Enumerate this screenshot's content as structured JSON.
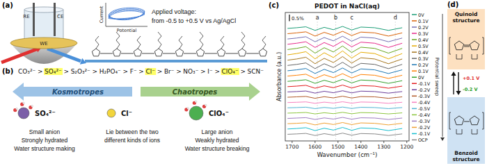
{
  "panels": {
    "a": {
      "letter": "(a)",
      "electrodes": [
        "RE",
        "CE",
        "WE"
      ],
      "inset": {
        "y_label": "Current",
        "x_label": "Potential"
      },
      "voltage_lines": [
        "Applied voltage:",
        "from -0.5 to +0.5 V vs Ag/AgCl"
      ]
    },
    "b": {
      "letter": "(b)",
      "separator": ">",
      "series": [
        {
          "text": "CO₃²⁻",
          "highlight": false
        },
        {
          "text": "SO₄²⁻",
          "highlight": true
        },
        {
          "text": "S₂O₃²⁻",
          "highlight": false
        },
        {
          "text": "H₂PO₄⁻",
          "highlight": false
        },
        {
          "text": "F⁻",
          "highlight": false
        },
        {
          "text": "Cl⁻",
          "highlight": true
        },
        {
          "text": "Br⁻",
          "highlight": false
        },
        {
          "text": "NO₃⁻",
          "highlight": false
        },
        {
          "text": "I⁻",
          "highlight": false
        },
        {
          "text": "ClO₄⁻",
          "highlight": true
        },
        {
          "text": "SCN⁻",
          "highlight": false
        }
      ],
      "arrows": [
        {
          "label": "Kosmotropes",
          "direction": "left",
          "color": "#9dc3e6"
        },
        {
          "label": "Chaotropes",
          "direction": "right",
          "color": "#a9d18e"
        }
      ],
      "ions": [
        {
          "name": "SO₄²⁻",
          "color": "#7b5ea7",
          "lines": [
            "Small anion",
            "Strongly hydrated",
            "Water structure making"
          ]
        },
        {
          "name": "Cl⁻",
          "color": "#f2d53c",
          "lines": [
            "Lie between the two",
            "different kinds of ions"
          ]
        },
        {
          "name": "ClO₄⁻",
          "color": "#4caf50",
          "lines": [
            "Large anion",
            "Weakly hydrated",
            "Water structure breaking"
          ]
        }
      ]
    },
    "c": {
      "letter": "(c)",
      "scale_bar": {
        "value": 0.5,
        "label": "0.5%"
      },
      "sweep_label": "Potential sweep"
    },
    "d": {
      "letter": "(d)",
      "states": [
        {
          "label": "Quinoid structure",
          "color": "#fde0c0"
        },
        {
          "label": "Benzoid structure",
          "color": "#cfe2f3"
        }
      ],
      "transitions": [
        {
          "label": "+0.1 V",
          "color": "#e03030"
        },
        {
          "label": "-0.2 V",
          "color": "#2ca02c"
        }
      ]
    }
  },
  "chart_data": {
    "type": "line",
    "title": "PEDOT in NaCl(aq)",
    "x_label": "Wavenumber (cm⁻¹)",
    "y_label": "Absorbance (a.u.)",
    "x": [
      1720,
      1680,
      1640,
      1600,
      1560,
      1520,
      1480,
      1440,
      1400,
      1340,
      1280,
      1220
    ],
    "xlim": [
      1730,
      1190
    ],
    "xticks": [
      1700,
      1600,
      1500,
      1400,
      1300,
      1200
    ],
    "ylim": [
      -0.5,
      9.2
    ],
    "tick_labels": "x",
    "grid": false,
    "legend": "right",
    "annotations": [
      {
        "text": "a",
        "x": 1590
      },
      {
        "text": "b",
        "x": 1510
      },
      {
        "text": "c",
        "x": 1440
      },
      {
        "text": "d",
        "x": 1250
      }
    ],
    "series": [
      {
        "name": "0V",
        "color": "#1b9e77",
        "values": [
          8,
          8.05,
          8.12,
          7.85,
          8.08,
          7.9,
          8.15,
          7.88,
          8.1,
          8.05,
          7.85,
          8.05
        ]
      },
      {
        "name": "0.1V",
        "color": "#d95f02",
        "values": [
          7.6,
          7.66,
          7.74,
          7.42,
          7.7,
          7.48,
          7.78,
          7.46,
          7.72,
          7.66,
          7.42,
          7.66
        ]
      },
      {
        "name": "0.2V",
        "color": "#7570b3",
        "values": [
          7.2,
          7.27,
          7.37,
          6.99,
          7.31,
          7.06,
          7.41,
          7.03,
          7.34,
          7.27,
          6.99,
          7.27
        ]
      },
      {
        "name": "0.3V",
        "color": "#e7298a",
        "values": [
          6.8,
          6.88,
          6.99,
          6.56,
          6.93,
          6.64,
          7.04,
          6.61,
          6.96,
          6.88,
          6.56,
          6.88
        ]
      },
      {
        "name": "0.4V",
        "color": "#66a61e",
        "values": [
          6.4,
          6.49,
          6.62,
          6.13,
          6.54,
          6.22,
          6.67,
          6.18,
          6.58,
          6.49,
          6.13,
          6.49
        ]
      },
      {
        "name": "0.5V",
        "color": "#e6ab02",
        "values": [
          6,
          6.1,
          6.24,
          5.7,
          6.16,
          5.8,
          6.3,
          5.76,
          6.2,
          6.1,
          5.7,
          6.1
        ]
      },
      {
        "name": "0.4V",
        "color": "#a6761d",
        "values": [
          5.6,
          5.69,
          5.82,
          5.33,
          5.74,
          5.42,
          5.87,
          5.38,
          5.78,
          5.69,
          5.33,
          5.69
        ]
      },
      {
        "name": "0.3V",
        "color": "#666666",
        "values": [
          5.2,
          5.28,
          5.39,
          4.96,
          5.33,
          5.04,
          5.44,
          5.01,
          5.36,
          5.28,
          4.96,
          5.28
        ]
      },
      {
        "name": "0.2V",
        "color": "#1f78b4",
        "values": [
          4.8,
          4.87,
          4.97,
          4.59,
          4.91,
          4.66,
          5.01,
          4.63,
          4.94,
          4.87,
          4.59,
          4.87
        ]
      },
      {
        "name": "0.1V",
        "color": "#ff7f00",
        "values": [
          4.4,
          4.46,
          4.54,
          4.22,
          4.5,
          4.28,
          4.58,
          4.26,
          4.52,
          4.46,
          4.22,
          4.46
        ]
      },
      {
        "name": "0V",
        "color": "#33a02c",
        "values": [
          4,
          4.05,
          4.12,
          3.85,
          4.08,
          3.9,
          4.15,
          3.88,
          4.1,
          4.05,
          3.85,
          4.05
        ]
      },
      {
        "name": "-0.1V",
        "color": "#e31a1c",
        "values": [
          3.6,
          3.64,
          3.7,
          3.48,
          3.66,
          3.52,
          3.72,
          3.5,
          3.68,
          3.64,
          3.48,
          3.64
        ]
      },
      {
        "name": "-0.2V",
        "color": "#6a3d9a",
        "values": [
          3.2,
          3.23,
          3.27,
          3.11,
          3.25,
          3.14,
          3.29,
          3.13,
          3.26,
          3.23,
          3.11,
          3.23
        ]
      },
      {
        "name": "-0.3V",
        "color": "#b15928",
        "values": [
          2.8,
          2.83,
          2.86,
          2.72,
          2.84,
          2.75,
          2.88,
          2.74,
          2.85,
          2.83,
          2.72,
          2.83
        ]
      },
      {
        "name": "-0.4V",
        "color": "#f781bf",
        "values": [
          2.4,
          2.42,
          2.45,
          2.34,
          2.43,
          2.36,
          2.46,
          2.35,
          2.44,
          2.42,
          2.34,
          2.42
        ]
      },
      {
        "name": "-0.5V",
        "color": "#4eb3d3",
        "values": [
          2,
          2.02,
          2.05,
          1.94,
          2.03,
          1.96,
          2.06,
          1.95,
          2.04,
          2.02,
          1.94,
          2.02
        ]
      },
      {
        "name": "-0.4V",
        "color": "#8dc63f",
        "values": [
          1.6,
          1.62,
          1.65,
          1.54,
          1.63,
          1.56,
          1.66,
          1.55,
          1.64,
          1.62,
          1.54,
          1.62
        ]
      },
      {
        "name": "-0.3V",
        "color": "#9e7cc1",
        "values": [
          1.2,
          1.23,
          1.26,
          1.12,
          1.24,
          1.15,
          1.28,
          1.14,
          1.25,
          1.23,
          1.12,
          1.23
        ]
      },
      {
        "name": "-0.2V",
        "color": "#f0a030",
        "values": [
          0.8,
          0.83,
          0.87,
          0.71,
          0.85,
          0.74,
          0.89,
          0.73,
          0.86,
          0.83,
          0.71,
          0.83
        ]
      },
      {
        "name": "-0.1V",
        "color": "#17becf",
        "values": [
          0.4,
          0.44,
          0.5,
          0.28,
          0.46,
          0.32,
          0.52,
          0.3,
          0.48,
          0.44,
          0.28,
          0.44
        ]
      },
      {
        "name": "OCP",
        "color": "#888888",
        "values": [
          0,
          0.03,
          0.07,
          -0.09,
          0.05,
          -0.06,
          0.09,
          -0.07,
          0.06,
          0.03,
          -0.09,
          0.03
        ]
      }
    ]
  }
}
